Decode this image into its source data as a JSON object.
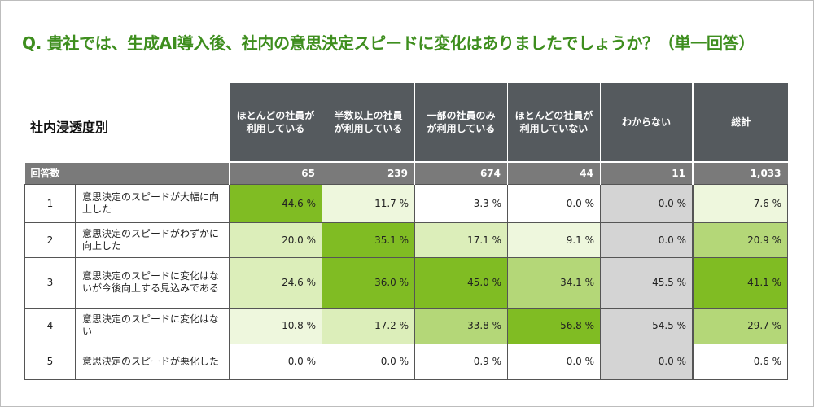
{
  "title": "Q. 貴社では、生成AI導入後、社内の意思決定スピードに変化はありましたでしょうか？（単一回答）",
  "segment_label": "社内浸透度別",
  "count_label": "回答数",
  "colors": {
    "level_dark": "#80bc23",
    "level_mid": "#b4d778",
    "level_light": "#dceeba",
    "level_pale": "#eef7dd",
    "gray_cell": "#d4d4d4",
    "header_bg": "#555a5e",
    "count_row_bg": "#7a7a7a",
    "title_color": "#3e8e1e"
  },
  "chart_data": {
    "type": "table",
    "columns": [
      "ほとんどの社員が\n利用している",
      "半数以上の社員\nが利用している",
      "一部の社員のみ\nが利用している",
      "ほとんどの社員が\n利用していない",
      "わからない",
      "総計"
    ],
    "counts": [
      "65",
      "239",
      "674",
      "44",
      "11",
      "1,033"
    ],
    "rows": [
      {
        "index": "1",
        "label": "意思決定のスピードが大幅に向上した",
        "values": [
          "44.6 %",
          "11.7 %",
          "3.3 %",
          "0.0 %",
          "0.0 %",
          "7.6 %"
        ],
        "shade": [
          "dark",
          "pale",
          "none",
          "none",
          "gray",
          "pale"
        ]
      },
      {
        "index": "2",
        "label": "意思決定のスピードがわずかに向上した",
        "values": [
          "20.0 %",
          "35.1 %",
          "17.1 %",
          "9.1 %",
          "0.0 %",
          "20.9 %"
        ],
        "shade": [
          "light",
          "dark",
          "light",
          "pale",
          "gray",
          "mid"
        ]
      },
      {
        "index": "3",
        "label": "意思決定のスピードに変化はないが今後向上する見込みである",
        "values": [
          "24.6 %",
          "36.0 %",
          "45.0 %",
          "34.1 %",
          "45.5 %",
          "41.1 %"
        ],
        "shade": [
          "light",
          "dark",
          "dark",
          "mid",
          "gray",
          "dark"
        ]
      },
      {
        "index": "4",
        "label": "意思決定のスピードに変化はない",
        "values": [
          "10.8 %",
          "17.2 %",
          "33.8 %",
          "56.8 %",
          "54.5 %",
          "29.7 %"
        ],
        "shade": [
          "pale",
          "light",
          "mid",
          "dark",
          "gray",
          "mid"
        ]
      },
      {
        "index": "5",
        "label": "意思決定のスピードが悪化した",
        "values": [
          "0.0 %",
          "0.0 %",
          "0.9 %",
          "0.0 %",
          "0.0 %",
          "0.6 %"
        ],
        "shade": [
          "none",
          "none",
          "none",
          "none",
          "gray",
          "none"
        ]
      }
    ]
  }
}
